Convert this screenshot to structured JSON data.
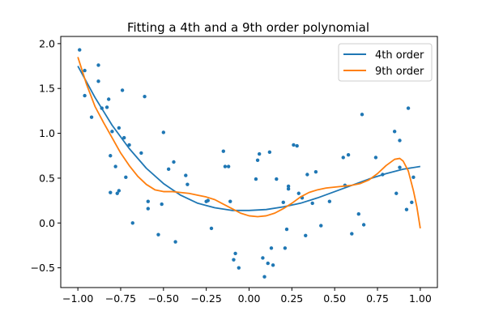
{
  "chart_data": {
    "type": "scatter",
    "title": "Fitting a 4th and a 9th order polynomial",
    "xlabel": "",
    "ylabel": "",
    "xlim": [
      -1.1,
      1.1
    ],
    "ylim": [
      -0.72,
      2.08
    ],
    "xticks": [
      -1.0,
      -0.75,
      -0.5,
      -0.25,
      0.0,
      0.25,
      0.5,
      0.75,
      1.0
    ],
    "xtick_labels": [
      "−1.00",
      "−0.75",
      "−0.50",
      "−0.25",
      "0.00",
      "0.25",
      "0.50",
      "0.75",
      "1.00"
    ],
    "yticks": [
      -0.5,
      0.0,
      0.5,
      1.0,
      1.5,
      2.0
    ],
    "ytick_labels": [
      "−0.5",
      "0.0",
      "0.5",
      "1.0",
      "1.5",
      "2.0"
    ],
    "grid": false,
    "legend_position": "top-right",
    "points": {
      "name": "data",
      "color": "#1f77b4",
      "x": [
        -0.99,
        -0.96,
        -0.96,
        -0.92,
        -0.88,
        -0.88,
        -0.86,
        -0.83,
        -0.82,
        -0.81,
        -0.81,
        -0.8,
        -0.78,
        -0.77,
        -0.76,
        -0.76,
        -0.74,
        -0.73,
        -0.72,
        -0.7,
        -0.68,
        -0.63,
        -0.61,
        -0.59,
        -0.59,
        -0.53,
        -0.51,
        -0.5,
        -0.47,
        -0.44,
        -0.43,
        -0.37,
        -0.36,
        -0.25,
        -0.24,
        -0.22,
        -0.15,
        -0.14,
        -0.12,
        -0.11,
        -0.09,
        -0.08,
        -0.06,
        0.04,
        0.05,
        0.06,
        0.08,
        0.09,
        0.11,
        0.12,
        0.13,
        0.14,
        0.16,
        0.2,
        0.21,
        0.22,
        0.23,
        0.23,
        0.26,
        0.28,
        0.29,
        0.31,
        0.33,
        0.34,
        0.37,
        0.39,
        0.42,
        0.47,
        0.55,
        0.56,
        0.58,
        0.6,
        0.64,
        0.66,
        0.67,
        0.74,
        0.78,
        0.85,
        0.86,
        0.88,
        0.88,
        0.92,
        0.93,
        0.95,
        0.96
      ],
      "y": [
        1.93,
        1.7,
        1.42,
        1.18,
        1.76,
        1.58,
        1.28,
        1.29,
        1.38,
        0.34,
        0.75,
        1.02,
        0.63,
        0.33,
        0.36,
        1.06,
        1.48,
        0.95,
        0.51,
        0.87,
        0.0,
        0.78,
        1.41,
        0.16,
        0.24,
        -0.13,
        0.21,
        1.01,
        0.6,
        0.68,
        -0.21,
        0.53,
        0.43,
        0.24,
        0.25,
        -0.06,
        0.8,
        0.63,
        0.63,
        0.24,
        -0.41,
        -0.34,
        -0.5,
        0.49,
        0.7,
        0.77,
        -0.39,
        -0.6,
        -0.45,
        0.79,
        -0.28,
        -0.47,
        0.49,
        0.23,
        -0.28,
        -0.07,
        0.41,
        0.38,
        0.87,
        0.86,
        0.33,
        0.28,
        -0.14,
        0.54,
        0.22,
        0.57,
        -0.03,
        0.24,
        0.73,
        0.42,
        0.76,
        -0.12,
        0.1,
        1.21,
        -0.02,
        0.73,
        0.54,
        1.02,
        0.33,
        0.92,
        0.62,
        0.15,
        1.28,
        0.23,
        0.51
      ]
    },
    "series": [
      {
        "name": "4th order",
        "color": "#1f77b4",
        "x": [
          -1.0,
          -0.9,
          -0.8,
          -0.7,
          -0.6,
          -0.5,
          -0.4,
          -0.3,
          -0.2,
          -0.1,
          0.0,
          0.1,
          0.2,
          0.3,
          0.4,
          0.5,
          0.6,
          0.7,
          0.8,
          0.9,
          1.0
        ],
        "y": [
          1.75,
          1.4,
          1.09,
          0.83,
          0.61,
          0.44,
          0.31,
          0.22,
          0.17,
          0.14,
          0.14,
          0.15,
          0.18,
          0.22,
          0.28,
          0.35,
          0.42,
          0.49,
          0.55,
          0.6,
          0.63
        ]
      },
      {
        "name": "9th order",
        "color": "#ff7f0e",
        "x": [
          -1.0,
          -0.95,
          -0.9,
          -0.85,
          -0.8,
          -0.75,
          -0.7,
          -0.65,
          -0.6,
          -0.55,
          -0.5,
          -0.45,
          -0.4,
          -0.35,
          -0.3,
          -0.25,
          -0.2,
          -0.15,
          -0.1,
          -0.05,
          0.0,
          0.05,
          0.1,
          0.15,
          0.2,
          0.25,
          0.3,
          0.35,
          0.4,
          0.45,
          0.5,
          0.55,
          0.6,
          0.65,
          0.7,
          0.75,
          0.8,
          0.85,
          0.88,
          0.9,
          0.93,
          0.96,
          0.98,
          1.0
        ],
        "y": [
          1.85,
          1.55,
          1.3,
          1.12,
          0.95,
          0.78,
          0.64,
          0.52,
          0.43,
          0.37,
          0.35,
          0.35,
          0.34,
          0.33,
          0.31,
          0.29,
          0.26,
          0.21,
          0.16,
          0.11,
          0.08,
          0.07,
          0.08,
          0.11,
          0.16,
          0.22,
          0.29,
          0.34,
          0.37,
          0.39,
          0.4,
          0.41,
          0.42,
          0.44,
          0.48,
          0.55,
          0.64,
          0.71,
          0.72,
          0.69,
          0.58,
          0.36,
          0.18,
          -0.06
        ]
      }
    ]
  }
}
